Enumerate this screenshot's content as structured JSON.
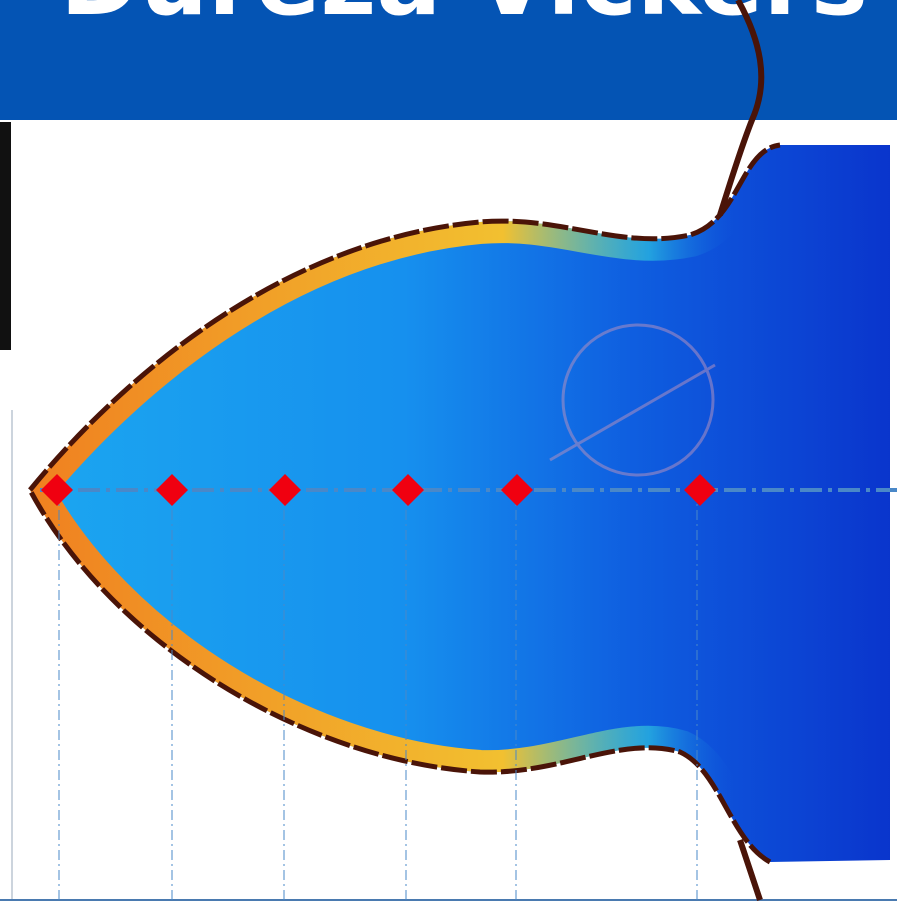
{
  "header": {
    "title": "Dureza Vickers"
  }
}
